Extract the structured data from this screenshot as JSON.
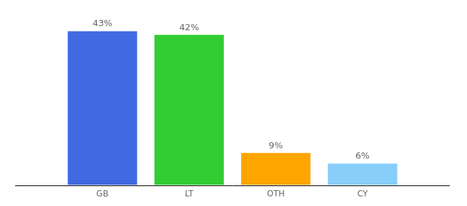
{
  "chart_data": {
    "type": "bar",
    "categories": [
      "GB",
      "LT",
      "OTH",
      "CY"
    ],
    "values": [
      43,
      42,
      9,
      6
    ],
    "value_labels": [
      "43%",
      "42%",
      "9%",
      "6%"
    ],
    "colors": [
      "#4169e1",
      "#32cd32",
      "#ffa500",
      "#87cefa"
    ],
    "ylim": [
      0,
      45
    ],
    "grid": false,
    "data_labels": true,
    "tick_labels": "x"
  }
}
